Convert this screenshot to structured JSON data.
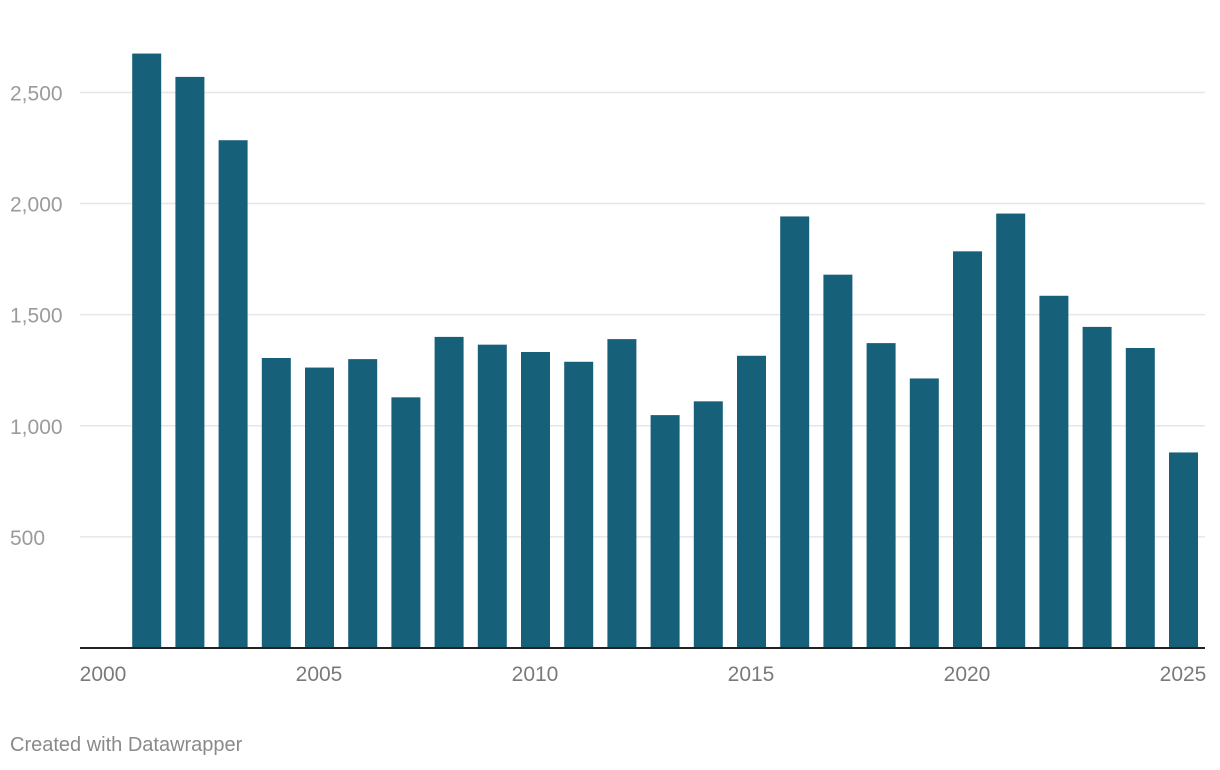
{
  "chart_data": {
    "type": "bar",
    "title": "",
    "xlabel": "",
    "ylabel": "",
    "categories": [
      "2001",
      "2002",
      "2003",
      "2004",
      "2005",
      "2006",
      "2007",
      "2008",
      "2009",
      "2010",
      "2011",
      "2012",
      "2013",
      "2014",
      "2015",
      "2016",
      "2017",
      "2018",
      "2019",
      "2020",
      "2021",
      "2022",
      "2023",
      "2024",
      "2025"
    ],
    "values": [
      2675,
      2570,
      2285,
      1305,
      1262,
      1300,
      1128,
      1400,
      1365,
      1332,
      1288,
      1390,
      1048,
      1110,
      1315,
      1942,
      1680,
      1372,
      1213,
      1785,
      1955,
      1585,
      1445,
      1350,
      880
    ],
    "x_range": [
      2000,
      2025
    ],
    "ylim": [
      0,
      2700
    ],
    "x_ticks": [
      "2000",
      "2005",
      "2010",
      "2015",
      "2020",
      "2025"
    ],
    "y_ticks": [
      {
        "value": 500,
        "label": "500"
      },
      {
        "value": 1000,
        "label": "1,000"
      },
      {
        "value": 1500,
        "label": "1,500"
      },
      {
        "value": 2000,
        "label": "2,000"
      },
      {
        "value": 2500,
        "label": "2,500"
      }
    ],
    "grid": true,
    "colors": {
      "bar": "#17607a",
      "grid": "#e6e6e6",
      "axis": "#222222",
      "tick_text": "#9b9b9b",
      "x_tick_text": "#7a7a7a"
    }
  },
  "footer": {
    "credit": "Created with Datawrapper"
  }
}
